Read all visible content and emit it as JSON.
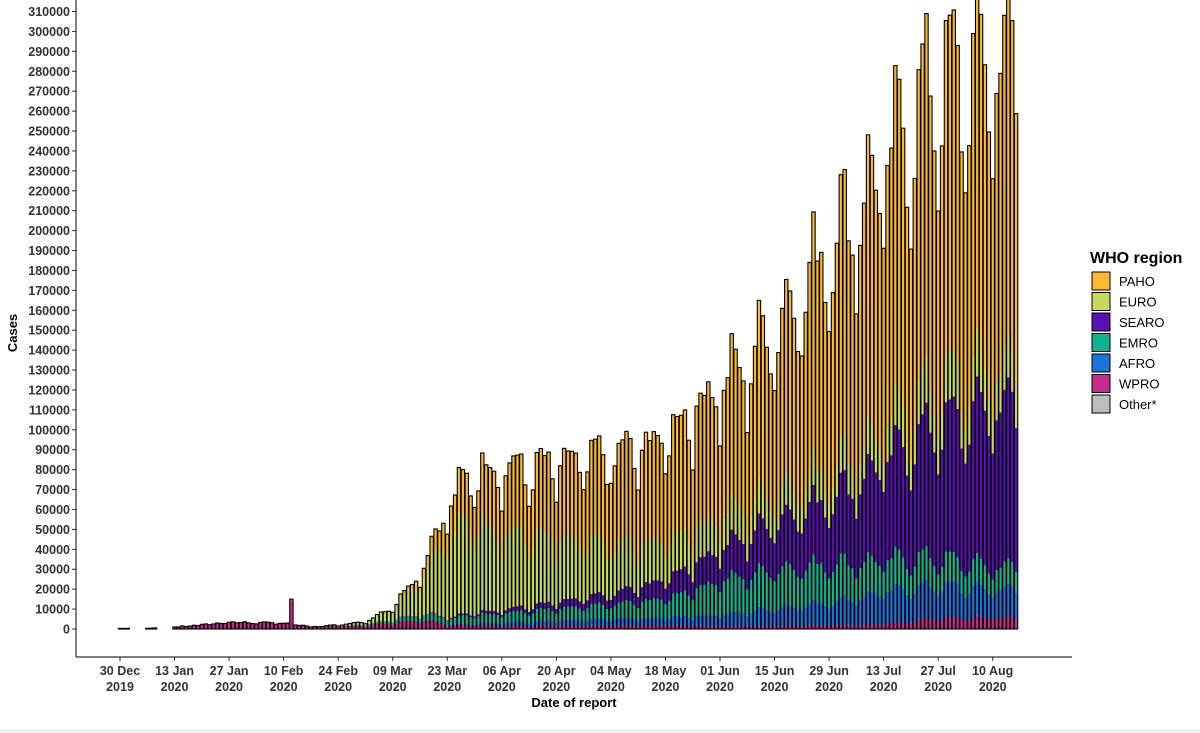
{
  "chart_data": {
    "type": "bar",
    "stacked": true,
    "xlabel": "Date of report",
    "ylabel": "Cases",
    "ylim": [
      0,
      310000
    ],
    "yticks": [
      0,
      10000,
      20000,
      30000,
      40000,
      50000,
      60000,
      70000,
      80000,
      90000,
      100000,
      110000,
      120000,
      130000,
      140000,
      150000,
      160000,
      170000,
      180000,
      190000,
      200000,
      210000,
      220000,
      230000,
      240000,
      250000,
      260000,
      270000,
      280000,
      290000,
      300000,
      310000
    ],
    "x_start": "30 Dec 2019",
    "x_end": "17 Aug 2020",
    "x_ticks": [
      {
        "day": 0,
        "line1": "30 Dec",
        "line2": "2019"
      },
      {
        "day": 14,
        "line1": "13 Jan",
        "line2": "2020"
      },
      {
        "day": 28,
        "line1": "27 Jan",
        "line2": "2020"
      },
      {
        "day": 42,
        "line1": "10 Feb",
        "line2": "2020"
      },
      {
        "day": 56,
        "line1": "24 Feb",
        "line2": "2020"
      },
      {
        "day": 70,
        "line1": "09 Mar",
        "line2": "2020"
      },
      {
        "day": 84,
        "line1": "23 Mar",
        "line2": "2020"
      },
      {
        "day": 98,
        "line1": "06 Apr",
        "line2": "2020"
      },
      {
        "day": 112,
        "line1": "20 Apr",
        "line2": "2020"
      },
      {
        "day": 126,
        "line1": "04 May",
        "line2": "2020"
      },
      {
        "day": 140,
        "line1": "18 May",
        "line2": "2020"
      },
      {
        "day": 154,
        "line1": "01 Jun",
        "line2": "2020"
      },
      {
        "day": 168,
        "line1": "15 Jun",
        "line2": "2020"
      },
      {
        "day": 182,
        "line1": "29 Jun",
        "line2": "2020"
      },
      {
        "day": 196,
        "line1": "13 Jul",
        "line2": "2020"
      },
      {
        "day": 210,
        "line1": "27 Jul",
        "line2": "2020"
      },
      {
        "day": 224,
        "line1": "10 Aug",
        "line2": "2020"
      }
    ],
    "legend": {
      "title": "WHO region",
      "position": "right",
      "items": [
        {
          "name": "PAHO",
          "color": "#F9B934"
        },
        {
          "name": "EURO",
          "color": "#C6D85E"
        },
        {
          "name": "SEARO",
          "color": "#5A0FB3"
        },
        {
          "name": "EMRO",
          "color": "#14B08F"
        },
        {
          "name": "AFRO",
          "color": "#1E73D8"
        },
        {
          "name": "WPRO",
          "color": "#C42B8E"
        },
        {
          "name": "Other*",
          "color": "#BDBDBD"
        }
      ]
    },
    "series_order_bottom_to_top": [
      "WPRO",
      "AFRO",
      "EMRO",
      "SEARO",
      "EURO",
      "PAHO"
    ],
    "weekly_totals": [
      {
        "start_day": 0,
        "total": 300
      },
      {
        "start_day": 7,
        "total": 400
      },
      {
        "start_day": 14,
        "total": 1000
      },
      {
        "start_day": 21,
        "total": 2000
      },
      {
        "start_day": 28,
        "total": 3500
      },
      {
        "start_day": 35,
        "total": 3000
      },
      {
        "start_day": 42,
        "total": 3000
      },
      {
        "start_day": 49,
        "total": 1000
      },
      {
        "start_day": 56,
        "total": 2000
      },
      {
        "start_day": 63,
        "total": 3500
      },
      {
        "start_day": 70,
        "total": 11000
      },
      {
        "start_day": 77,
        "total": 28000
      },
      {
        "start_day": 84,
        "total": 60000
      },
      {
        "start_day": 91,
        "total": 78000
      },
      {
        "start_day": 98,
        "total": 80000
      },
      {
        "start_day": 105,
        "total": 78000
      },
      {
        "start_day": 112,
        "total": 80000
      },
      {
        "start_day": 119,
        "total": 82000
      },
      {
        "start_day": 126,
        "total": 85000
      },
      {
        "start_day": 133,
        "total": 88000
      },
      {
        "start_day": 140,
        "total": 95000
      },
      {
        "start_day": 147,
        "total": 108000
      },
      {
        "start_day": 154,
        "total": 120000
      },
      {
        "start_day": 161,
        "total": 130000
      },
      {
        "start_day": 168,
        "total": 150000
      },
      {
        "start_day": 175,
        "total": 165000
      },
      {
        "start_day": 182,
        "total": 190000
      },
      {
        "start_day": 189,
        "total": 205000
      },
      {
        "start_day": 196,
        "total": 225000
      },
      {
        "start_day": 203,
        "total": 250000
      },
      {
        "start_day": 210,
        "total": 270000
      },
      {
        "start_day": 217,
        "total": 270000
      },
      {
        "start_day": 224,
        "total": 280000
      }
    ],
    "weekly_shares_bottom_to_top": [
      {
        "start_day": 0,
        "shares": [
          1.0,
          0.0,
          0.0,
          0.0,
          0.0,
          0.0
        ]
      },
      {
        "start_day": 42,
        "shares": [
          1.0,
          0.0,
          0.0,
          0.0,
          0.0,
          0.0
        ]
      },
      {
        "start_day": 56,
        "shares": [
          0.7,
          0.0,
          0.1,
          0.0,
          0.2,
          0.0
        ]
      },
      {
        "start_day": 70,
        "shares": [
          0.25,
          0.0,
          0.15,
          0.0,
          0.55,
          0.05
        ]
      },
      {
        "start_day": 84,
        "shares": [
          0.03,
          0.0,
          0.05,
          0.01,
          0.66,
          0.25
        ]
      },
      {
        "start_day": 98,
        "shares": [
          0.02,
          0.02,
          0.06,
          0.02,
          0.48,
          0.4
        ]
      },
      {
        "start_day": 112,
        "shares": [
          0.02,
          0.03,
          0.07,
          0.04,
          0.38,
          0.46
        ]
      },
      {
        "start_day": 126,
        "shares": [
          0.02,
          0.04,
          0.08,
          0.06,
          0.28,
          0.52
        ]
      },
      {
        "start_day": 140,
        "shares": [
          0.02,
          0.04,
          0.1,
          0.1,
          0.2,
          0.54
        ]
      },
      {
        "start_day": 154,
        "shares": [
          0.01,
          0.05,
          0.14,
          0.13,
          0.13,
          0.54
        ]
      },
      {
        "start_day": 168,
        "shares": [
          0.01,
          0.06,
          0.13,
          0.16,
          0.1,
          0.54
        ]
      },
      {
        "start_day": 182,
        "shares": [
          0.01,
          0.06,
          0.1,
          0.17,
          0.08,
          0.58
        ]
      },
      {
        "start_day": 196,
        "shares": [
          0.01,
          0.07,
          0.07,
          0.21,
          0.07,
          0.57
        ]
      },
      {
        "start_day": 210,
        "shares": [
          0.02,
          0.06,
          0.05,
          0.24,
          0.08,
          0.55
        ]
      },
      {
        "start_day": 224,
        "shares": [
          0.02,
          0.05,
          0.04,
          0.28,
          0.07,
          0.54
        ]
      }
    ],
    "annotations": [
      {
        "day": 44,
        "total": 15000,
        "series": "WPRO",
        "note": "spike"
      }
    ]
  }
}
